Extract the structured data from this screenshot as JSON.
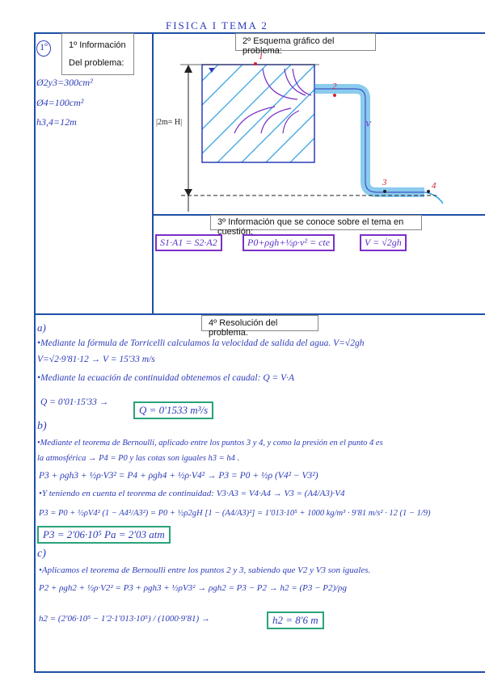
{
  "header": {
    "title": "FISICA I   TEMA 2"
  },
  "section1": {
    "number": "1º",
    "label_line1": "1º Información",
    "label_line2": "Del problema:",
    "data": [
      "Ø2y3=300cm²",
      "Ø4=100cm²",
      "h3,4=12m"
    ]
  },
  "section2": {
    "label": "2º Esquema gráfico del problema:",
    "height_label": "|2m= H|",
    "points": [
      "1",
      "2",
      "3",
      "4"
    ],
    "velocity_mark": "V"
  },
  "section3": {
    "label": "3º Información que se conoce sobre el tema en cuestión:",
    "formulas": [
      "S1·A1 = S2·A2",
      "P0+ρgh+½ρ·v² = cte",
      "V = √2gh"
    ]
  },
  "section4": {
    "label": "4º Resolución del problema.",
    "a": {
      "letter": "a)",
      "lines": [
        "•Mediante la fórmula de Torricelli calculamos la velocidad de salida del agua.  V=√2gh",
        "V=√2·9'81·12  → V = 15'33 m/s",
        "•Mediante la ecuación de continuidad obtenemos el caudal:  Q = V·A",
        "Q = 0'01·15'33 →"
      ],
      "result": "Q = 0'1533 m³/s"
    },
    "b": {
      "letter": "b)",
      "lines": [
        "•Mediante el teorema de Bernoulli, aplicado entre los puntos 3 y 4, y como la presión en el punto 4 es",
        "la atmosférica → P4 = P0 y las cotas son iguales h3 = h4 .",
        "P3 + ρgh3 + ½ρ·V3² = P4 + ρgh4 + ½ρ·V4² → P3 = P0 + ½ρ (V4² − V3²)",
        "•Y teniendo en cuenta el teorema de continuidad:  V3·A3 = V4·A4 → V3 = (A4/A3)·V4",
        "P3 = P0 + ½ρV4² (1 − A4²/A3²) = P0 + ½ρ2gH [1 − (A4/A3)²] = 1'013·10⁵ + 1000 kg/m³ · 9'81 m/s² · 12 (1 − 1/9)"
      ],
      "result": "P3 = 2'06·10⁵ Pa = 2'03 atm"
    },
    "c": {
      "letter": "c)",
      "lines": [
        "•Aplicamos el teorema de Bernoulli entre los puntos 2 y 3, sabiendo que V2 y V3 son iguales.",
        "P2 + ρgh2 + ½ρ·V2² = P3 + ρgh3 + ½ρV3² → ρgh2 = P3 − P2   → h2 = (P3 − P2)/ρg",
        "h2 = (2'06·10⁵ − 1'2·1'013·10⁵) / (1000·9'81) →"
      ],
      "result": "h2 = 8'6 m"
    }
  },
  "colors": {
    "frame": "#1d4fa6",
    "ink": "#2c3bb8",
    "purple": "#7a2fc9",
    "green": "#2aa37a",
    "red": "#d02030",
    "water": "#2aa0e0"
  }
}
